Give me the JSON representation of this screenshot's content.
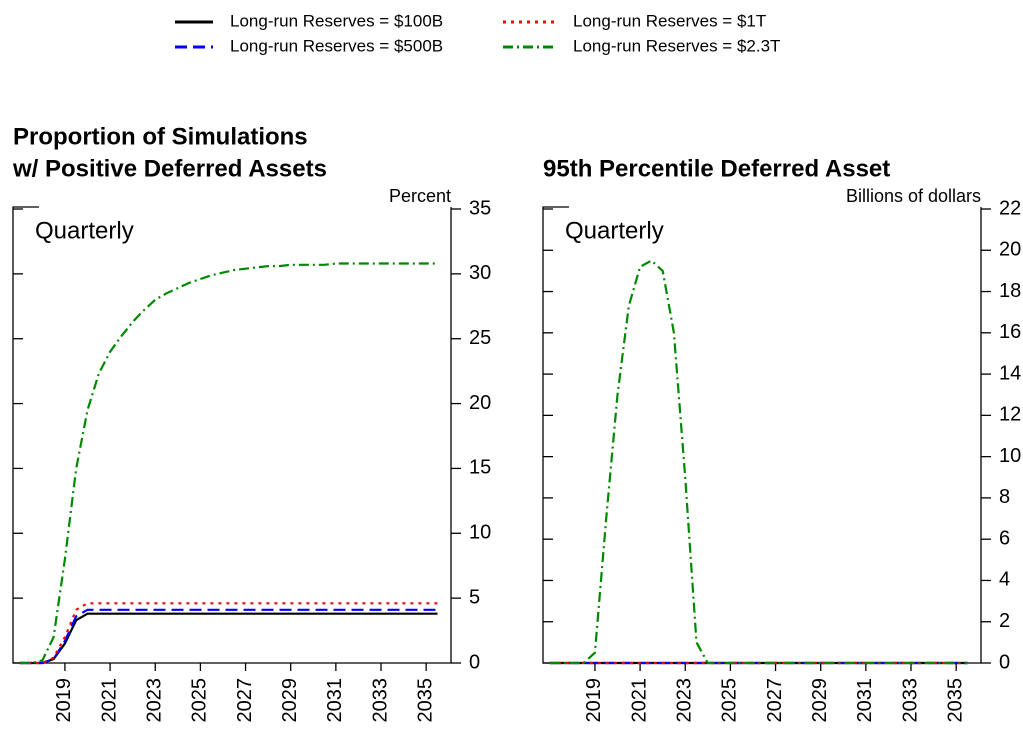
{
  "chart_data": [
    {
      "type": "line",
      "title": [
        "Proportion of Simulations",
        "w/ Positive Deferred Assets"
      ],
      "y_label": "Percent",
      "annotation": "Quarterly",
      "x": [
        2017,
        2017.5,
        2018,
        2018.5,
        2019,
        2019.5,
        2020,
        2020.5,
        2021,
        2021.5,
        2022,
        2022.5,
        2023,
        2023.5,
        2024,
        2024.5,
        2025,
        2025.5,
        2026,
        2026.5,
        2027,
        2027.5,
        2028,
        2028.5,
        2029,
        2029.5,
        2030,
        2030.5,
        2031,
        2031.5,
        2032,
        2032.5,
        2033,
        2033.5,
        2034,
        2034.5,
        2035,
        2035.5
      ],
      "xlim": [
        2016.7,
        2036.1
      ],
      "xticks": [
        2019,
        2021,
        2023,
        2025,
        2027,
        2029,
        2031,
        2033,
        2035
      ],
      "ylim": [
        0,
        35
      ],
      "yticks": [
        0,
        5,
        10,
        15,
        20,
        25,
        30,
        35
      ],
      "series": [
        {
          "name": "Long-run Reserves = $100B",
          "color": "#000000",
          "style": "solid",
          "values": [
            0,
            0,
            0,
            0.3,
            1.5,
            3.3,
            3.8,
            3.8,
            3.8,
            3.8,
            3.8,
            3.8,
            3.8,
            3.8,
            3.8,
            3.8,
            3.8,
            3.8,
            3.8,
            3.8,
            3.8,
            3.8,
            3.8,
            3.8,
            3.8,
            3.8,
            3.8,
            3.8,
            3.8,
            3.8,
            3.8,
            3.8,
            3.8,
            3.8,
            3.8,
            3.8,
            3.8,
            3.8
          ]
        },
        {
          "name": "Long-run Reserves = $500B",
          "color": "#0000ff",
          "style": "dashed",
          "values": [
            0,
            0,
            0,
            0.3,
            1.7,
            3.6,
            4.1,
            4.1,
            4.1,
            4.1,
            4.1,
            4.1,
            4.1,
            4.1,
            4.1,
            4.1,
            4.1,
            4.1,
            4.1,
            4.1,
            4.1,
            4.1,
            4.1,
            4.1,
            4.1,
            4.1,
            4.1,
            4.1,
            4.1,
            4.1,
            4.1,
            4.1,
            4.1,
            4.1,
            4.1,
            4.1,
            4.1,
            4.1
          ]
        },
        {
          "name": "Long-run Reserves = $1T",
          "color": "#ff0000",
          "style": "dotted",
          "values": [
            0,
            0,
            0,
            0.4,
            2,
            4.1,
            4.6,
            4.6,
            4.6,
            4.6,
            4.6,
            4.6,
            4.6,
            4.6,
            4.6,
            4.6,
            4.6,
            4.6,
            4.6,
            4.6,
            4.6,
            4.6,
            4.6,
            4.6,
            4.6,
            4.6,
            4.6,
            4.6,
            4.6,
            4.6,
            4.6,
            4.6,
            4.6,
            4.6,
            4.6,
            4.6,
            4.6,
            4.6
          ]
        },
        {
          "name": "Long-run Reserves = $2.3T",
          "color": "#008800",
          "style": "dashdot",
          "values": [
            0,
            0,
            0.2,
            2,
            8,
            15,
            19.5,
            22.3,
            24,
            25.2,
            26.3,
            27.2,
            28,
            28.5,
            28.9,
            29.3,
            29.6,
            29.9,
            30.1,
            30.3,
            30.4,
            30.5,
            30.6,
            30.6,
            30.7,
            30.7,
            30.7,
            30.7,
            30.8,
            30.8,
            30.8,
            30.8,
            30.8,
            30.8,
            30.8,
            30.8,
            30.8,
            30.8
          ]
        }
      ]
    },
    {
      "type": "line",
      "title": [
        "95th Percentile Deferred Asset"
      ],
      "y_label": "Billions of dollars",
      "annotation": "Quarterly",
      "x": [
        2017,
        2017.5,
        2018,
        2018.5,
        2019,
        2019.5,
        2020,
        2020.5,
        2021,
        2021.5,
        2022,
        2022.5,
        2023,
        2023.5,
        2024,
        2024.5,
        2025,
        2025.5,
        2026,
        2026.5,
        2027,
        2027.5,
        2028,
        2028.5,
        2029,
        2029.5,
        2030,
        2030.5,
        2031,
        2031.5,
        2032,
        2032.5,
        2033,
        2033.5,
        2034,
        2034.5,
        2035,
        2035.5
      ],
      "xlim": [
        2016.7,
        2036.1
      ],
      "xticks": [
        2019,
        2021,
        2023,
        2025,
        2027,
        2029,
        2031,
        2033,
        2035
      ],
      "ylim": [
        0,
        22
      ],
      "yticks": [
        0,
        2,
        4,
        6,
        8,
        10,
        12,
        14,
        16,
        18,
        20,
        22
      ],
      "series": [
        {
          "color": "#000000",
          "style": "solid",
          "values": [
            0,
            0,
            0,
            0,
            0,
            0,
            0,
            0,
            0,
            0,
            0,
            0,
            0,
            0,
            0,
            0,
            0,
            0,
            0,
            0,
            0,
            0,
            0,
            0,
            0,
            0,
            0,
            0,
            0,
            0,
            0,
            0,
            0,
            0,
            0,
            0,
            0,
            0
          ]
        },
        {
          "color": "#0000ff",
          "style": "dashed",
          "values": [
            0,
            0,
            0,
            0,
            0,
            0,
            0,
            0,
            0,
            0,
            0,
            0,
            0,
            0,
            0,
            0,
            0,
            0,
            0,
            0,
            0,
            0,
            0,
            0,
            0,
            0,
            0,
            0,
            0,
            0,
            0,
            0,
            0,
            0,
            0,
            0,
            0,
            0
          ]
        },
        {
          "color": "#ff0000",
          "style": "dotted",
          "values": [
            0,
            0,
            0,
            0,
            0,
            0,
            0,
            0,
            0,
            0,
            0,
            0,
            0,
            0,
            0,
            0,
            0,
            0,
            0,
            0,
            0,
            0,
            0,
            0,
            0,
            0,
            0,
            0,
            0,
            0,
            0,
            0,
            0,
            0,
            0,
            0,
            0,
            0
          ]
        },
        {
          "color": "#008800",
          "style": "dashdot",
          "values": [
            0,
            0,
            0,
            0,
            0.5,
            7,
            13,
            17.3,
            19.2,
            19.5,
            19,
            16,
            9,
            1,
            0,
            0,
            0,
            0,
            0,
            0,
            0,
            0,
            0,
            0,
            0,
            0,
            0,
            0,
            0,
            0,
            0,
            0,
            0,
            0,
            0,
            0,
            0,
            0
          ]
        }
      ]
    }
  ]
}
